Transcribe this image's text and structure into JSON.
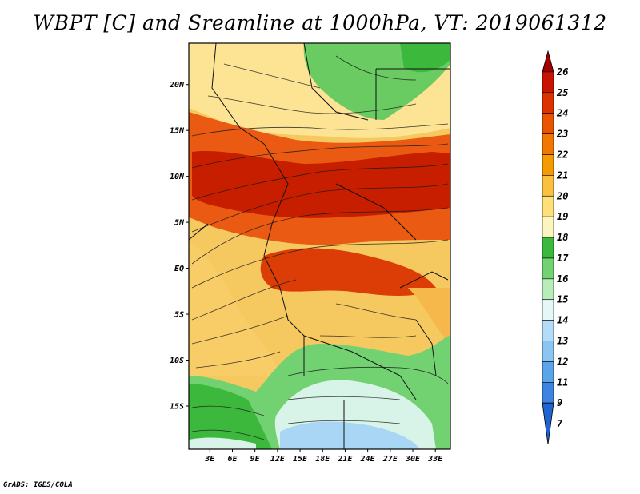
{
  "title": "WBPT [C] and Sreamline at 1000hPa, VT: 2019061312",
  "credit": "GrADS: IGES/COLA",
  "map": {
    "lat_labels": [
      "20N",
      "15N",
      "10N",
      "5N",
      "EQ",
      "5S",
      "10S",
      "15S"
    ],
    "lat_values": [
      20,
      15,
      10,
      5,
      0,
      -5,
      -10,
      -15
    ],
    "lon_labels": [
      "3E",
      "6E",
      "9E",
      "12E",
      "15E",
      "18E",
      "21E",
      "24E",
      "27E",
      "30E",
      "33E"
    ],
    "lon_values": [
      3,
      6,
      9,
      12,
      15,
      18,
      21,
      24,
      27,
      30,
      33
    ],
    "lon_range": [
      0.2,
      35
    ],
    "lat_range": [
      -19.7,
      24.5
    ]
  },
  "colorbar": {
    "labels": [
      "26",
      "25",
      "24",
      "23",
      "22",
      "21",
      "20",
      "19",
      "18",
      "17",
      "16",
      "15",
      "14",
      "13",
      "12",
      "11",
      "9",
      "7"
    ],
    "colors": [
      "#a50000",
      "#c81400",
      "#dc3200",
      "#ea5400",
      "#f07800",
      "#f59a00",
      "#fac040",
      "#fde07a",
      "#fdf5c0",
      "#3cb93c",
      "#72d272",
      "#b8ecb8",
      "#e6f7f7",
      "#b4dcf8",
      "#8cc4f2",
      "#5aa4ea",
      "#3c84e0",
      "#1e64d2"
    ]
  }
}
